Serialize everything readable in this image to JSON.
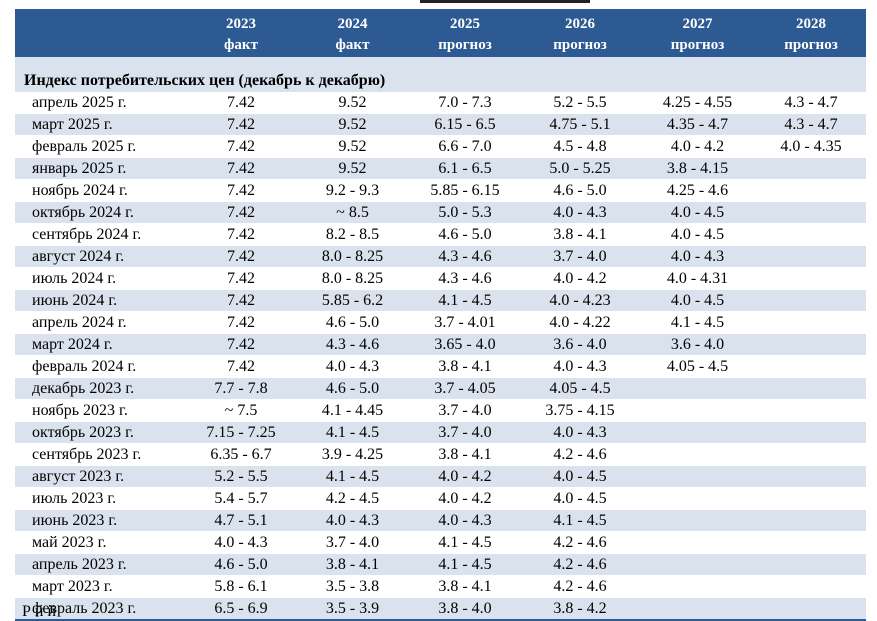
{
  "header": {
    "columns": [
      {
        "year": "",
        "note": ""
      },
      {
        "year": "2023",
        "note": "факт"
      },
      {
        "year": "2024",
        "note": "факт"
      },
      {
        "year": "2025",
        "note": "прогноз"
      },
      {
        "year": "2026",
        "note": "прогноз"
      },
      {
        "year": "2027",
        "note": "прогноз"
      },
      {
        "year": "2028",
        "note": "прогноз"
      }
    ]
  },
  "section_title": "Индекс  потребительских цен (декабрь к декабрю)",
  "rows": [
    {
      "label": "апрель 2025 г.",
      "v": [
        "7.42",
        "9.52",
        "7.0 - 7.3",
        "5.2 - 5.5",
        "4.25 - 4.55",
        "4.3 - 4.7"
      ]
    },
    {
      "label": "март 2025 г.",
      "v": [
        "7.42",
        "9.52",
        "6.15 - 6.5",
        "4.75 - 5.1",
        "4.35 - 4.7",
        "4.3 - 4.7"
      ]
    },
    {
      "label": "февраль 2025 г.",
      "v": [
        "7.42",
        "9.52",
        "6.6 - 7.0",
        "4.5 - 4.8",
        "4.0 - 4.2",
        "4.0 - 4.35"
      ]
    },
    {
      "label": "январь 2025 г.",
      "v": [
        "7.42",
        "9.52",
        "6.1 - 6.5",
        "5.0 - 5.25",
        "3.8 - 4.15",
        ""
      ]
    },
    {
      "label": "ноябрь 2024 г.",
      "v": [
        "7.42",
        "9.2 - 9.3",
        "5.85 - 6.15",
        "4.6 - 5.0",
        "4.25 - 4.6",
        ""
      ]
    },
    {
      "label": "октябрь 2024 г.",
      "v": [
        "7.42",
        "~ 8.5",
        "5.0 - 5.3",
        "4.0 - 4.3",
        "4.0 - 4.5",
        ""
      ]
    },
    {
      "label": "сентябрь 2024 г.",
      "v": [
        "7.42",
        "8.2 - 8.5",
        "4.6 - 5.0",
        "3.8 - 4.1",
        "4.0 - 4.5",
        ""
      ]
    },
    {
      "label": "август 2024 г.",
      "v": [
        "7.42",
        "8.0 - 8.25",
        "4.3 - 4.6",
        "3.7 - 4.0",
        "4.0 - 4.3",
        ""
      ]
    },
    {
      "label": "июль 2024 г.",
      "v": [
        "7.42",
        "8.0 - 8.25",
        "4.3 - 4.6",
        "4.0 - 4.2",
        "4.0 - 4.31",
        ""
      ]
    },
    {
      "label": "июнь 2024 г.",
      "v": [
        "7.42",
        "5.85 - 6.2",
        "4.1 - 4.5",
        "4.0 - 4.23",
        "4.0 - 4.5",
        ""
      ]
    },
    {
      "label": "апрель 2024 г.",
      "v": [
        "7.42",
        "4.6 - 5.0",
        "3.7 - 4.01",
        "4.0 - 4.22",
        "4.1 - 4.5",
        ""
      ]
    },
    {
      "label": "март 2024 г.",
      "v": [
        "7.42",
        "4.3 - 4.6",
        "3.65 - 4.0",
        "3.6 - 4.0",
        "3.6 - 4.0",
        ""
      ]
    },
    {
      "label": "февраль 2024 г.",
      "v": [
        "7.42",
        "4.0 - 4.3",
        "3.8 - 4.1",
        "4.0 - 4.3",
        "4.05 - 4.5",
        ""
      ]
    },
    {
      "label": "декабрь 2023 г.",
      "v": [
        "7.7 - 7.8",
        "4.6 - 5.0",
        "3.7 - 4.05",
        "4.05 - 4.5",
        "",
        ""
      ]
    },
    {
      "label": "ноябрь 2023 г.",
      "v": [
        "~ 7.5",
        "4.1 - 4.45",
        "3.7 - 4.0",
        "3.75 - 4.15",
        "",
        ""
      ]
    },
    {
      "label": "октябрь 2023 г.",
      "v": [
        "7.15 - 7.25",
        "4.1 - 4.5",
        "3.7 - 4.0",
        "4.0 - 4.3",
        "",
        ""
      ]
    },
    {
      "label": "сентябрь 2023 г.",
      "v": [
        "6.35 - 6.7",
        "3.9 - 4.25",
        "3.8 - 4.1",
        "4.2 - 4.6",
        "",
        ""
      ]
    },
    {
      "label": "август 2023 г.",
      "v": [
        "5.2 - 5.5",
        "4.1 - 4.5",
        "4.0 - 4.2",
        "4.0 - 4.5",
        "",
        ""
      ]
    },
    {
      "label": "июль 2023 г.",
      "v": [
        "5.4 - 5.7",
        "4.2 - 4.5",
        "4.0 - 4.2",
        "4.0 - 4.5",
        "",
        ""
      ]
    },
    {
      "label": "июнь 2023 г.",
      "v": [
        "4.7 - 5.1",
        "4.0 - 4.3",
        "4.0 - 4.3",
        "4.1 - 4.5",
        "",
        ""
      ]
    },
    {
      "label": "май 2023 г.",
      "v": [
        "4.0 - 4.3",
        "3.7 - 4.0",
        "4.1 - 4.5",
        "4.2 - 4.6",
        "",
        ""
      ]
    },
    {
      "label": "апрель 2023 г.",
      "v": [
        "4.6 - 5.0",
        "3.8 - 4.1",
        "4.1 - 4.5",
        "4.2 - 4.6",
        "",
        ""
      ]
    },
    {
      "label": "март 2023 г.",
      "v": [
        "5.8 - 6.1",
        "3.5 - 3.8",
        "3.8 - 4.1",
        "4.2 - 4.6",
        "",
        ""
      ]
    },
    {
      "label": "февраль 2023 г.",
      "v": [
        "6.5 - 6.9",
        "3.5 - 3.9",
        "3.8 - 4.0",
        "3.8 - 4.2",
        "",
        ""
      ]
    }
  ],
  "footnote": "Р          й                й"
}
